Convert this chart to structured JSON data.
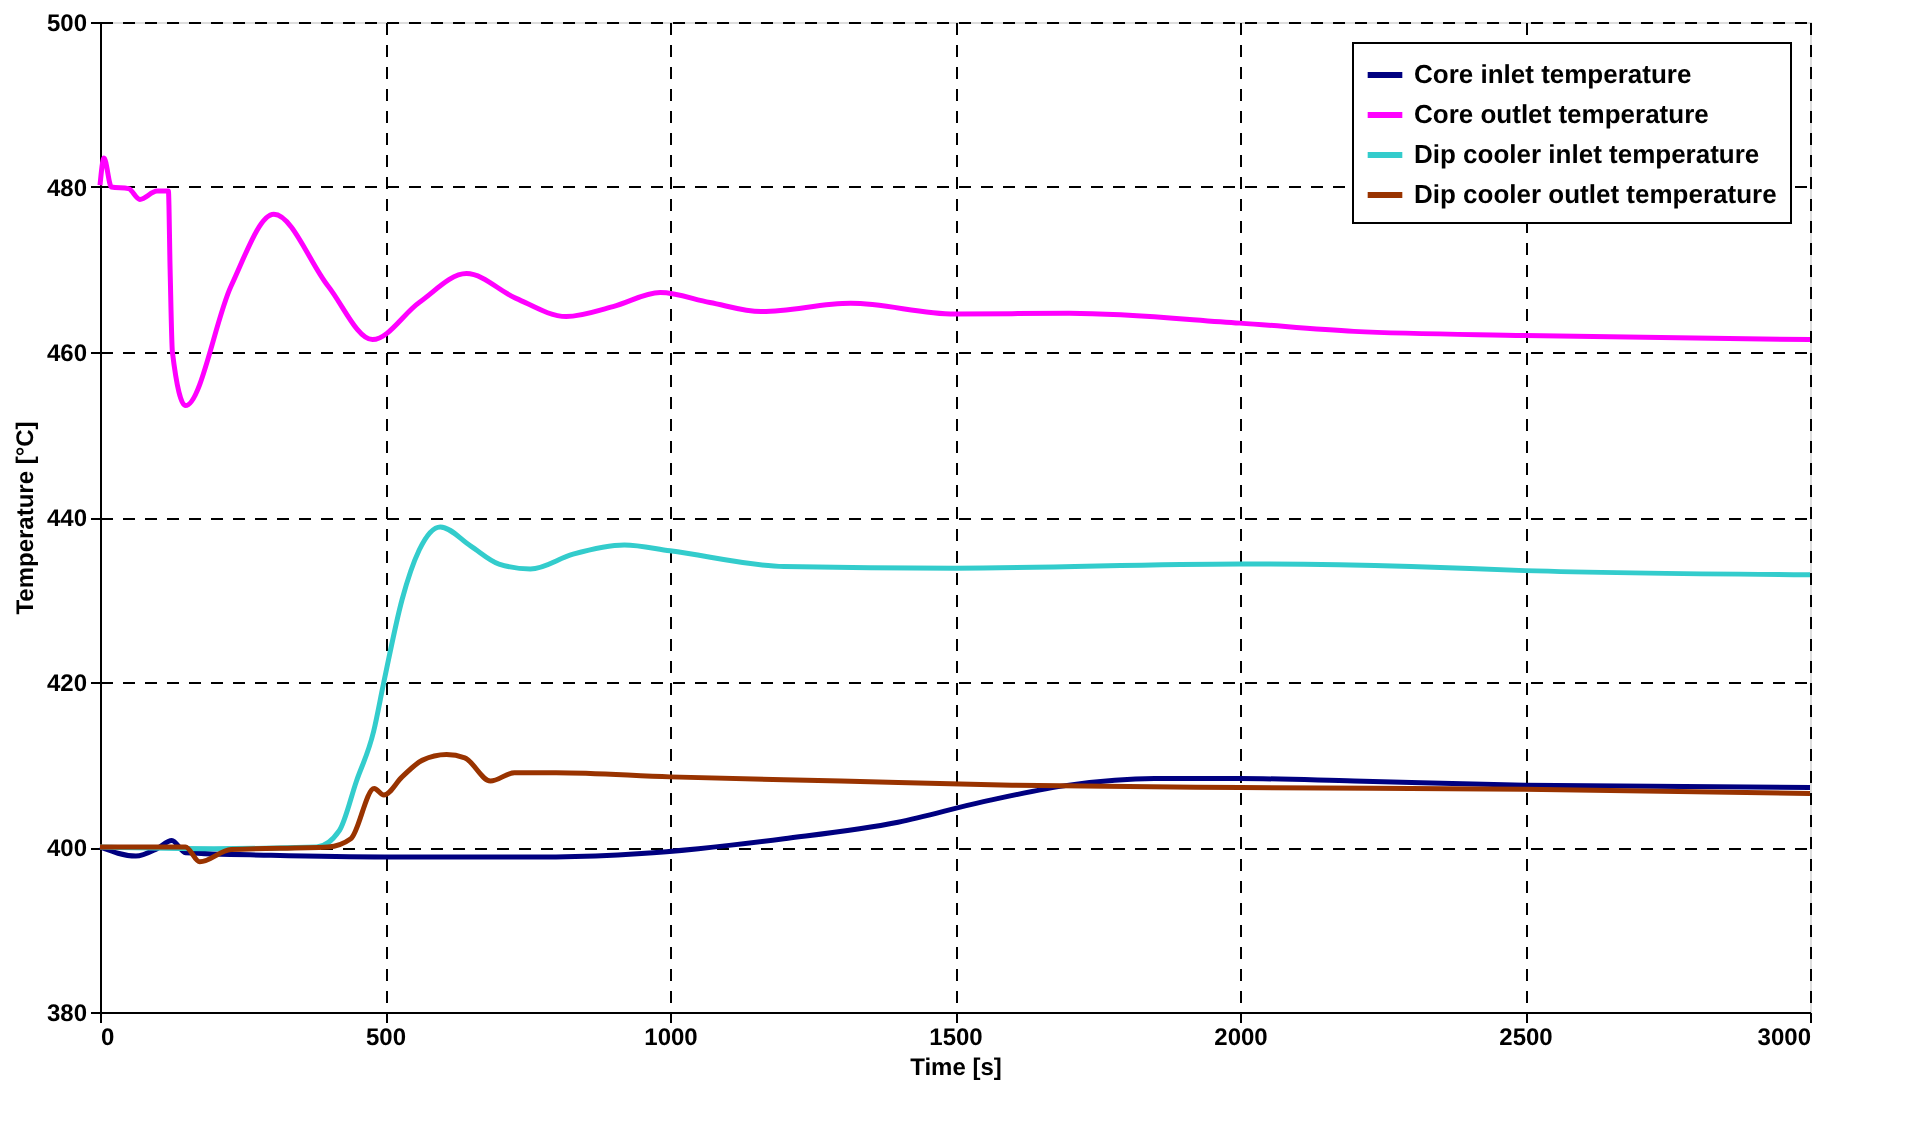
{
  "chart_data": {
    "type": "line",
    "xlabel": "Time [s]",
    "ylabel": "Temperature [°C]",
    "xlim": [
      0,
      3000
    ],
    "xticks": [
      0,
      500,
      1000,
      1500,
      2000,
      2500,
      3000
    ],
    "ylim": [
      380,
      500
    ],
    "yticks": [
      380,
      400,
      420,
      440,
      460,
      480,
      500
    ],
    "grid": true,
    "legend": "top right",
    "marker": "none",
    "line_style": "solid",
    "series": [
      {
        "name": "Core inlet temperature",
        "color": "#000080",
        "x": [
          0,
          63,
          100,
          126,
          150,
          300,
          500,
          800,
          950,
          1050,
          1200,
          1400,
          1550,
          1700,
          1850,
          2000,
          2200,
          2500,
          3000
        ],
        "values": [
          400,
          398.9,
          399.8,
          400.8,
          399.3,
          399,
          398.8,
          398.8,
          399.2,
          399.8,
          401,
          403,
          405.5,
          407.5,
          408.3,
          408.3,
          408,
          407.5,
          407.2
        ]
      },
      {
        "name": "Core outlet temperature",
        "color": "#ff00ff",
        "x": [
          0,
          7,
          20,
          50,
          70,
          100,
          120,
          123,
          127,
          150,
          230,
          305,
          400,
          478,
          560,
          643,
          730,
          818,
          900,
          983,
          1070,
          1160,
          1317,
          1500,
          1700,
          2000,
          2200,
          2500,
          3000
        ],
        "values": [
          480.2,
          483.5,
          480,
          479.8,
          478.5,
          479.5,
          479.5,
          470,
          460,
          453.5,
          468,
          476.7,
          468,
          461.5,
          466,
          469.5,
          466.5,
          464.3,
          465.5,
          467.2,
          466,
          464.9,
          465.9,
          464.6,
          464.7,
          463.5,
          462.5,
          462,
          461.5
        ]
      },
      {
        "name": "Dip cooler inlet temperature",
        "color": "#33cccc",
        "x": [
          0,
          200,
          380,
          420,
          450,
          480,
          498,
          530,
          560,
          597,
          650,
          700,
          755,
          830,
          920,
          1000,
          1200,
          1500,
          2000,
          2300,
          2500,
          3000
        ],
        "values": [
          400,
          399.8,
          400,
          402,
          408,
          414,
          420,
          430,
          436,
          438.8,
          436.5,
          434.3,
          433.7,
          435.5,
          436.6,
          435.9,
          434,
          433.8,
          434.3,
          434,
          433.5,
          433
        ]
      },
      {
        "name": "Dip cooler outlet temperature",
        "color": "#993300",
        "x": [
          0,
          150,
          175,
          230,
          400,
          440,
          481,
          498,
          530,
          565,
          608,
          640,
          685,
          727,
          800,
          1000,
          1300,
          1600,
          2000,
          2500,
          3000
        ],
        "values": [
          400,
          400,
          398.2,
          399.7,
          400,
          401,
          407.1,
          406.3,
          408.5,
          410.5,
          411.2,
          410.8,
          408,
          409,
          409,
          408.5,
          408,
          407.5,
          407.2,
          407,
          406.5
        ]
      }
    ]
  }
}
